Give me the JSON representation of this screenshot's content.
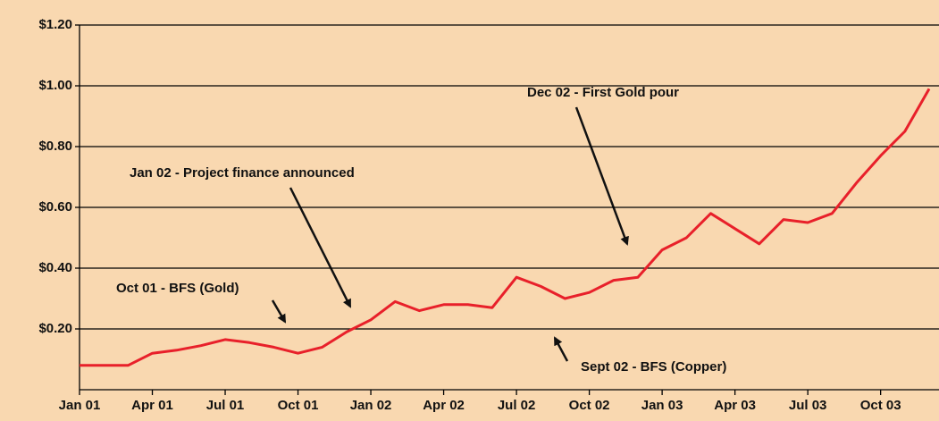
{
  "chart_data": {
    "type": "line",
    "x": [
      "2001-01",
      "2001-02",
      "2001-03",
      "2001-04",
      "2001-05",
      "2001-06",
      "2001-07",
      "2001-08",
      "2001-09",
      "2001-10",
      "2001-11",
      "2001-12",
      "2002-01",
      "2002-02",
      "2002-03",
      "2002-04",
      "2002-05",
      "2002-06",
      "2002-07",
      "2002-08",
      "2002-09",
      "2002-10",
      "2002-11",
      "2002-12",
      "2003-01",
      "2003-02",
      "2003-03",
      "2003-04",
      "2003-05",
      "2003-06",
      "2003-07",
      "2003-08",
      "2003-09",
      "2003-10",
      "2003-11",
      "2003-12"
    ],
    "series": [
      {
        "color": "#e8202a",
        "values": [
          0.08,
          0.08,
          0.08,
          0.12,
          0.13,
          0.145,
          0.165,
          0.155,
          0.14,
          0.12,
          0.14,
          0.19,
          0.23,
          0.29,
          0.26,
          0.28,
          0.28,
          0.27,
          0.37,
          0.34,
          0.3,
          0.32,
          0.36,
          0.37,
          0.46,
          0.5,
          0.58,
          0.53,
          0.48,
          0.56,
          0.55,
          0.58,
          0.68,
          0.77,
          0.85,
          0.99
        ]
      }
    ],
    "xlim": [
      "2001-01",
      "2003-12"
    ],
    "xticks": [
      {
        "value": "2001-01",
        "label": "Jan 01"
      },
      {
        "value": "2001-04",
        "label": "Apr 01"
      },
      {
        "value": "2001-07",
        "label": "Jul 01"
      },
      {
        "value": "2001-10",
        "label": "Oct 01"
      },
      {
        "value": "2002-01",
        "label": "Jan 02"
      },
      {
        "value": "2002-04",
        "label": "Apr 02"
      },
      {
        "value": "2002-07",
        "label": "Jul 02"
      },
      {
        "value": "2002-10",
        "label": "Oct 02"
      },
      {
        "value": "2003-01",
        "label": "Jan 03"
      },
      {
        "value": "2003-04",
        "label": "Apr 03"
      },
      {
        "value": "2003-07",
        "label": "Jul 03"
      },
      {
        "value": "2003-10",
        "label": "Oct 03"
      }
    ],
    "ylim": [
      0,
      1.2
    ],
    "yticks": [
      {
        "value": 0.2,
        "label": "$0.20"
      },
      {
        "value": 0.4,
        "label": "$0.40"
      },
      {
        "value": 0.6,
        "label": "$0.60"
      },
      {
        "value": 0.8,
        "label": "$0.80"
      },
      {
        "value": 1.0,
        "label": "$1.00"
      },
      {
        "value": 1.2,
        "label": "$1.20"
      }
    ],
    "grid": true,
    "annotations": [
      "Oct 01 - BFS (Gold)",
      "Jan 02 - Project finance announced",
      "Dec 02 - First Gold pour",
      "Sept 02 - BFS (Copper)"
    ]
  }
}
